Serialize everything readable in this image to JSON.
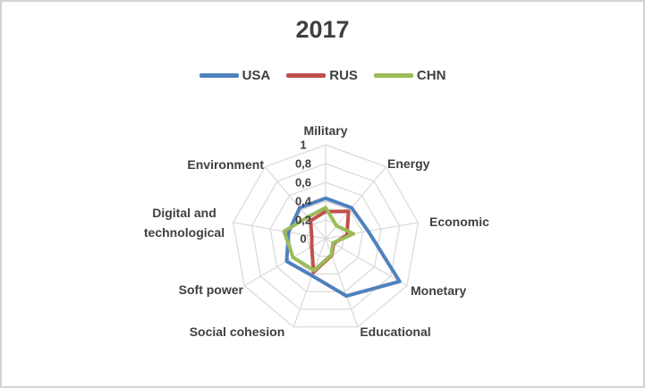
{
  "title": "2017",
  "legend": [
    {
      "label": "USA",
      "color": "#4F81BD"
    },
    {
      "label": "RUS",
      "color": "#C0504D"
    },
    {
      "label": "CHN",
      "color": "#9BBB59"
    }
  ],
  "chart_data": {
    "type": "radar",
    "title": "2017",
    "categories": [
      "Military",
      "Energy",
      "Economic",
      "Monetary",
      "Educational",
      "Social cohesion",
      "Soft power",
      "Digital and technological",
      "Environment"
    ],
    "series": [
      {
        "name": "USA",
        "color": "#4F81BD",
        "values": [
          0.43,
          0.43,
          0.46,
          0.91,
          0.65,
          0.42,
          0.48,
          0.4,
          0.43
        ]
      },
      {
        "name": "RUS",
        "color": "#C0504D",
        "values": [
          0.29,
          0.38,
          0.23,
          0.1,
          0.19,
          0.38,
          0.17,
          0.15,
          0.25
        ]
      },
      {
        "name": "CHN",
        "color": "#9BBB59",
        "values": [
          0.33,
          0.18,
          0.3,
          0.09,
          0.18,
          0.36,
          0.4,
          0.45,
          0.3
        ]
      }
    ],
    "axis": {
      "min": 0,
      "max": 1,
      "step": 0.2,
      "tick_labels": [
        "0",
        "0,2",
        "0,4",
        "0,6",
        "0,8",
        "1"
      ]
    },
    "grid_color": "#D9D9D9",
    "text_color": "#3f3f3f",
    "legend_position": "top",
    "grid": true
  }
}
